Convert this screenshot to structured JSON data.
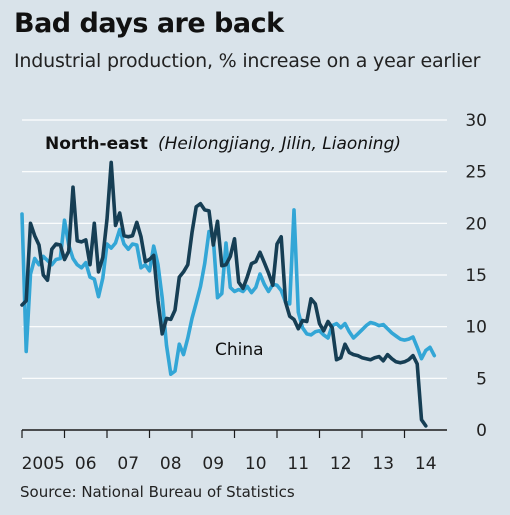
{
  "chart_data": {
    "type": "line",
    "title": "Bad days are back",
    "subtitle": "Industrial production, % increase on a year earlier",
    "source": "Source: National Bureau of Statistics",
    "ylim": [
      0,
      30
    ],
    "yticks": [
      "0",
      "5",
      "10",
      "15",
      "20",
      "25",
      "30"
    ],
    "xticks": [
      "2005",
      "06",
      "07",
      "08",
      "09",
      "10",
      "11",
      "12",
      "13",
      "14"
    ],
    "xlim": [
      2005.0,
      2015.0
    ],
    "grid": true,
    "annotations": {
      "northeast_bold": "North-east",
      "northeast_italic": "(Heilongjiang, Jilin, Liaoning)",
      "china": "China"
    },
    "series": [
      {
        "name": "China",
        "color": "#33a6d6",
        "x": [
          2005.0,
          2005.1,
          2005.2,
          2005.3,
          2005.4,
          2005.5,
          2005.6,
          2005.7,
          2005.8,
          2005.9,
          2006.0,
          2006.1,
          2006.2,
          2006.3,
          2006.4,
          2006.5,
          2006.6,
          2006.7,
          2006.8,
          2006.9,
          2007.0,
          2007.1,
          2007.2,
          2007.3,
          2007.4,
          2007.5,
          2007.6,
          2007.7,
          2007.8,
          2007.9,
          2008.0,
          2008.1,
          2008.2,
          2008.3,
          2008.4,
          2008.5,
          2008.6,
          2008.7,
          2008.8,
          2008.9,
          2009.0,
          2009.1,
          2009.2,
          2009.3,
          2009.4,
          2009.5,
          2009.6,
          2009.7,
          2009.8,
          2009.9,
          2010.0,
          2010.1,
          2010.2,
          2010.3,
          2010.4,
          2010.5,
          2010.6,
          2010.7,
          2010.8,
          2010.9,
          2011.0,
          2011.1,
          2011.2,
          2011.3,
          2011.4,
          2011.5,
          2011.6,
          2011.7,
          2011.8,
          2011.9,
          2012.0,
          2012.1,
          2012.2,
          2012.3,
          2012.4,
          2012.5,
          2012.6,
          2012.7,
          2012.8,
          2012.9,
          2013.0,
          2013.1,
          2013.2,
          2013.3,
          2013.4,
          2013.5,
          2013.6,
          2013.7,
          2013.8,
          2013.9,
          2014.0,
          2014.1,
          2014.2,
          2014.3,
          2014.4,
          2014.5,
          2014.6,
          2014.7
        ],
        "values": [
          20.9,
          7.6,
          15.1,
          16.6,
          16.0,
          16.8,
          16.4,
          16.0,
          16.5,
          16.6,
          20.3,
          17.9,
          16.6,
          16.0,
          15.7,
          16.2,
          14.8,
          14.6,
          12.9,
          14.7,
          18.0,
          17.6,
          18.1,
          19.4,
          18.0,
          17.5,
          18.0,
          17.9,
          15.7,
          16.0,
          15.4,
          17.8,
          16.0,
          12.8,
          8.2,
          5.4,
          5.7,
          8.3,
          7.3,
          8.9,
          10.8,
          12.3,
          13.9,
          16.1,
          19.2,
          18.5,
          12.8,
          13.2,
          18.1,
          13.8,
          13.4,
          13.6,
          13.4,
          13.9,
          13.3,
          13.8,
          15.1,
          14.1,
          13.4,
          14.1,
          14.0,
          13.5,
          12.4,
          12.2,
          21.3,
          11.4,
          9.9,
          9.3,
          9.2,
          9.5,
          9.6,
          9.2,
          8.9,
          10.1,
          10.3,
          9.9,
          10.3,
          9.5,
          8.9,
          9.3,
          9.7,
          10.1,
          10.4,
          10.3,
          10.1,
          10.2,
          9.8,
          9.4,
          9.1,
          8.8,
          8.7,
          8.8,
          9.0,
          8.0,
          6.9,
          7.7,
          8.0,
          7.2
        ]
      },
      {
        "name": "North-east",
        "color": "#163e54",
        "x": [
          2005.0,
          2005.1,
          2005.2,
          2005.3,
          2005.4,
          2005.5,
          2005.6,
          2005.7,
          2005.8,
          2005.9,
          2006.0,
          2006.1,
          2006.2,
          2006.3,
          2006.4,
          2006.5,
          2006.6,
          2006.7,
          2006.8,
          2006.9,
          2007.0,
          2007.1,
          2007.2,
          2007.3,
          2007.4,
          2007.5,
          2007.6,
          2007.7,
          2007.8,
          2007.9,
          2008.0,
          2008.1,
          2008.2,
          2008.3,
          2008.4,
          2008.5,
          2008.6,
          2008.7,
          2008.8,
          2008.9,
          2009.0,
          2009.1,
          2009.2,
          2009.3,
          2009.4,
          2009.5,
          2009.6,
          2009.7,
          2009.8,
          2009.9,
          2010.0,
          2010.1,
          2010.2,
          2010.3,
          2010.4,
          2010.5,
          2010.6,
          2010.7,
          2010.8,
          2010.9,
          2011.0,
          2011.1,
          2011.2,
          2011.3,
          2011.4,
          2011.5,
          2011.6,
          2011.7,
          2011.8,
          2011.9,
          2012.0,
          2012.1,
          2012.2,
          2012.3,
          2012.4,
          2012.5,
          2012.6,
          2012.7,
          2012.8,
          2012.9,
          2013.0,
          2013.1,
          2013.2,
          2013.3,
          2013.4,
          2013.5,
          2013.6,
          2013.7,
          2013.8,
          2013.9,
          2014.0,
          2014.1,
          2014.2,
          2014.3,
          2014.4,
          2014.5
        ],
        "values": [
          12.1,
          12.5,
          20.0,
          18.8,
          17.9,
          15.0,
          14.5,
          17.5,
          18.0,
          17.9,
          16.5,
          17.3,
          23.5,
          18.3,
          18.2,
          18.4,
          16.0,
          20.0,
          15.3,
          16.7,
          20.4,
          25.9,
          19.8,
          21.0,
          18.8,
          18.7,
          18.8,
          20.1,
          18.7,
          16.3,
          16.5,
          16.9,
          12.5,
          9.3,
          10.8,
          10.7,
          11.6,
          14.8,
          15.3,
          16.0,
          19.1,
          21.6,
          21.9,
          21.3,
          21.2,
          17.9,
          20.2,
          15.9,
          16.0,
          16.8,
          18.5,
          14.3,
          13.7,
          14.8,
          16.1,
          16.3,
          17.2,
          16.2,
          15.2,
          14.0,
          18.0,
          18.7,
          12.4,
          11.0,
          10.7,
          9.8,
          10.6,
          10.5,
          12.7,
          12.2,
          10.3,
          9.6,
          10.5,
          9.9,
          6.8,
          7.0,
          8.3,
          7.5,
          7.3,
          7.2,
          7.0,
          6.9,
          6.8,
          7.0,
          7.1,
          6.7,
          7.3,
          6.9,
          6.6,
          6.5,
          6.6,
          6.8,
          7.2,
          6.4,
          1.0,
          0.4
        ]
      }
    ]
  }
}
